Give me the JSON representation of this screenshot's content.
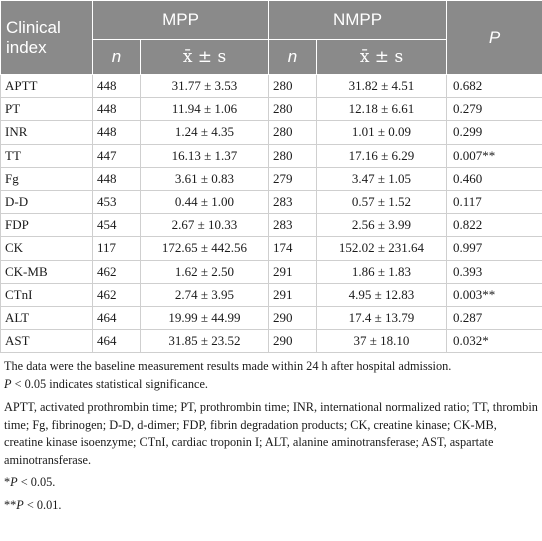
{
  "header": {
    "clinical_index": "Clinical index",
    "mpp": "MPP",
    "nmpp": "NMPP",
    "p": "P",
    "n": "n",
    "mean_sd": "x̄ ± s"
  },
  "rows": [
    {
      "index": "APTT",
      "mpp_n": "448",
      "mpp_val": "31.77 ± 3.53",
      "nmpp_n": "280",
      "nmpp_val": "31.82 ± 4.51",
      "p": "0.682"
    },
    {
      "index": "PT",
      "mpp_n": "448",
      "mpp_val": "11.94 ± 1.06",
      "nmpp_n": "280",
      "nmpp_val": "12.18 ± 6.61",
      "p": "0.279"
    },
    {
      "index": "INR",
      "mpp_n": "448",
      "mpp_val": "1.24 ± 4.35",
      "nmpp_n": "280",
      "nmpp_val": "1.01 ± 0.09",
      "p": "0.299"
    },
    {
      "index": "TT",
      "mpp_n": "447",
      "mpp_val": "16.13 ± 1.37",
      "nmpp_n": "280",
      "nmpp_val": "17.16 ± 6.29",
      "p": "0.007**"
    },
    {
      "index": "Fg",
      "mpp_n": "448",
      "mpp_val": "3.61 ± 0.83",
      "nmpp_n": "279",
      "nmpp_val": "3.47 ± 1.05",
      "p": "0.460"
    },
    {
      "index": "D-D",
      "mpp_n": "453",
      "mpp_val": "0.44 ± 1.00",
      "nmpp_n": "283",
      "nmpp_val": "0.57 ± 1.52",
      "p": "0.117"
    },
    {
      "index": "FDP",
      "mpp_n": "454",
      "mpp_val": "2.67 ± 10.33",
      "nmpp_n": "283",
      "nmpp_val": "2.56 ± 3.99",
      "p": "0.822"
    },
    {
      "index": "CK",
      "mpp_n": "117",
      "mpp_val": "172.65 ± 442.56",
      "nmpp_n": "174",
      "nmpp_val": "152.02 ± 231.64",
      "p": "0.997"
    },
    {
      "index": "CK-MB",
      "mpp_n": "462",
      "mpp_val": "1.62 ± 2.50",
      "nmpp_n": "291",
      "nmpp_val": "1.86 ± 1.83",
      "p": "0.393"
    },
    {
      "index": "CTnI",
      "mpp_n": "462",
      "mpp_val": "2.74 ± 3.95",
      "nmpp_n": "291",
      "nmpp_val": "4.95 ± 12.83",
      "p": "0.003**"
    },
    {
      "index": "ALT",
      "mpp_n": "464",
      "mpp_val": "19.99 ± 44.99",
      "nmpp_n": "290",
      "nmpp_val": "17.4 ± 13.79",
      "p": "0.287"
    },
    {
      "index": "AST",
      "mpp_n": "464",
      "mpp_val": "31.85 ± 23.52",
      "nmpp_n": "290",
      "nmpp_val": "37 ± 18.10",
      "p": "0.032*"
    }
  ],
  "notes": {
    "line1": "The data were the baseline measurement results made within 24 h after hospital admission.",
    "line2_p": "P",
    "line2_rest": " < 0.05 indicates statistical significance.",
    "abbreviations": "APTT, activated prothrombin time; PT, prothrombin time; INR, international normalized ratio; TT, thrombin time; Fg, fibrinogen; D-D, d-dimer; FDP, fibrin degradation products; CK, creatine kinase; CK-MB, creatine kinase isoenzyme; CTnI, cardiac troponin I; ALT, alanine aminotransferase; AST, aspartate aminotransferase.",
    "fn1_mark": "*",
    "fn1_p": "P",
    "fn1_rest": " < 0.05.",
    "fn2_mark": "**",
    "fn2_p": "P",
    "fn2_rest": " < 0.01."
  }
}
